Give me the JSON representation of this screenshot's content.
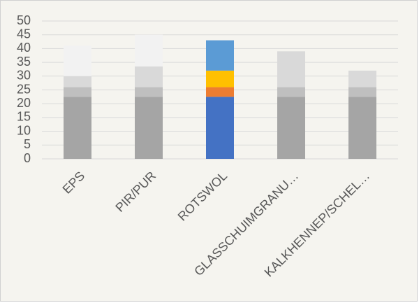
{
  "chart_data": {
    "type": "stacked_bar",
    "categories": [
      "EPS",
      "PIR/PUR",
      "ROTSWOL",
      "GLASSCHUIMGRANU…",
      "KALKHENNEP/SCHEL…"
    ],
    "series": [
      {
        "colors": [
          "#a5a5a5",
          "#a5a5a5",
          "#4472c4",
          "#a5a5a5",
          "#a5a5a5"
        ],
        "values": [
          22.5,
          22.5,
          22.5,
          22.5,
          22.5
        ]
      },
      {
        "colors": [
          "#bfbfbf",
          "#bfbfbf",
          "#ed7d31",
          "#bfbfbf",
          "#bfbfbf"
        ],
        "values": [
          3.5,
          3.5,
          3.5,
          3.5,
          3.5
        ]
      },
      {
        "colors": [
          "#d9d9d9",
          "#d9d9d9",
          "#ffc000",
          "#d9d9d9",
          "#d9d9d9"
        ],
        "values": [
          4,
          7.5,
          6,
          13,
          6
        ]
      },
      {
        "colors": [
          "#f2f2f2",
          "#f2f2f2",
          "#5b9bd5",
          "#f2f2f2",
          "#f2f2f2"
        ],
        "values": [
          11,
          11.5,
          11,
          0,
          0
        ]
      }
    ],
    "ylim": [
      0,
      50
    ],
    "yticks": [
      0,
      5,
      10,
      15,
      20,
      25,
      30,
      35,
      40,
      45,
      50
    ],
    "grid": true
  }
}
